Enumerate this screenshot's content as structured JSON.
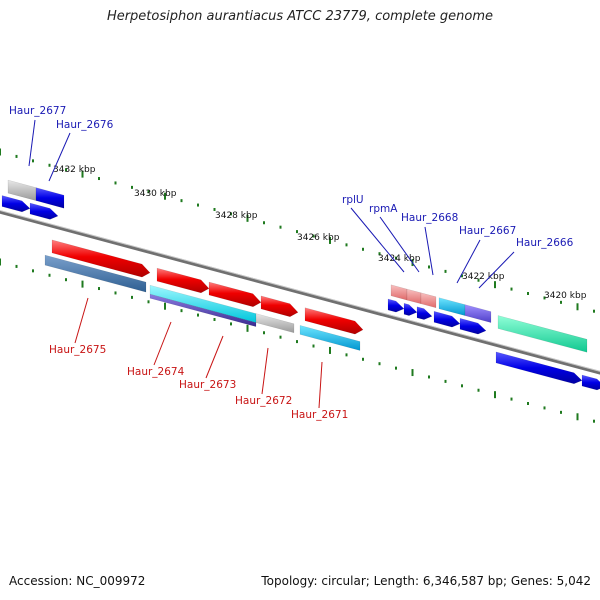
{
  "title": "Herpetosiphon aurantiacus ATCC 23779, complete genome",
  "footer": {
    "accession": "Accession: NC_009972",
    "summary": "Topology: circular; Length: 6,346,587 bp; Genes: 5,042"
  },
  "colors": {
    "upper_label": "#1a1ab4",
    "lower_label": "#c81414",
    "tick_green": "#1f7a1f",
    "backbone": "#707070"
  },
  "ticks": [
    {
      "label": "3432 kbp"
    },
    {
      "label": "3430 kbp"
    },
    {
      "label": "3428 kbp"
    },
    {
      "label": "3426 kbp"
    },
    {
      "label": "3424 kbp"
    },
    {
      "label": "3422 kbp"
    },
    {
      "label": "3420 kbp"
    }
  ],
  "upper_labels": [
    {
      "text": "Haur_2677"
    },
    {
      "text": "Haur_2676"
    },
    {
      "text": "rplU"
    },
    {
      "text": "rpmA"
    },
    {
      "text": "Haur_2668"
    },
    {
      "text": "Haur_2667"
    },
    {
      "text": "Haur_2666"
    }
  ],
  "lower_labels": [
    {
      "text": "Haur_2675"
    },
    {
      "text": "Haur_2674"
    },
    {
      "text": "Haur_2673"
    },
    {
      "text": "Haur_2672"
    },
    {
      "text": "Haur_2671"
    }
  ]
}
